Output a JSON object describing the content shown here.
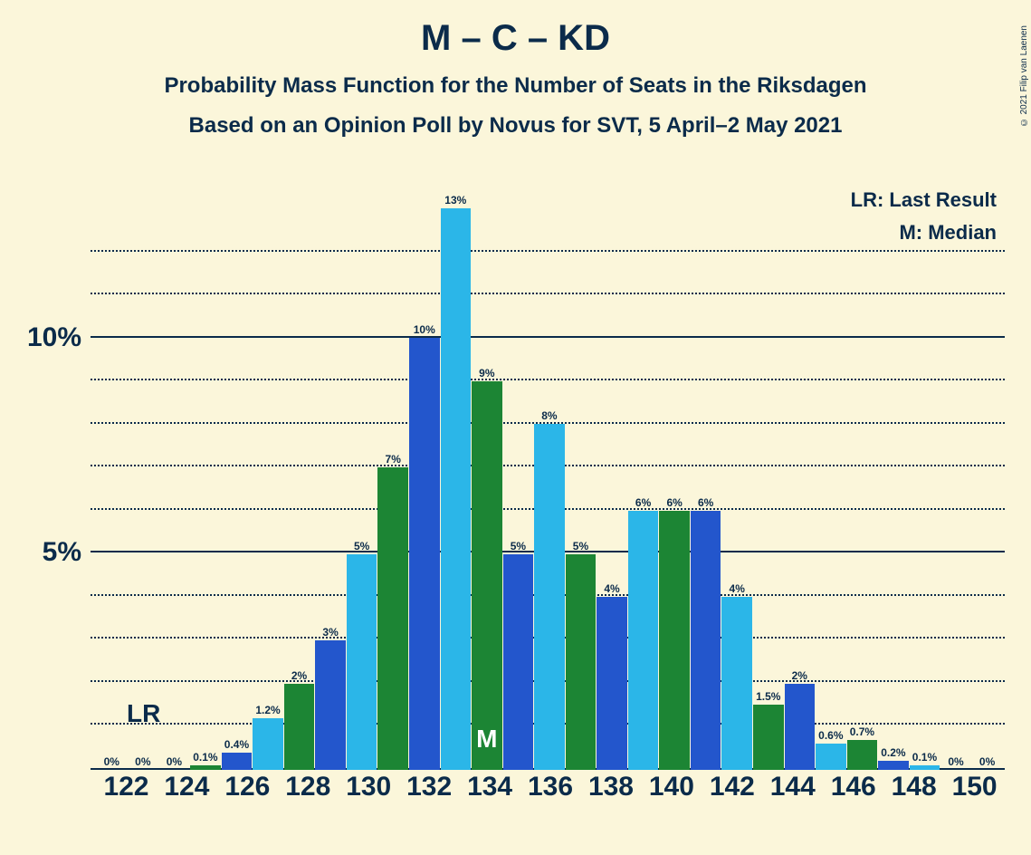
{
  "title": "M – C – KD",
  "title_fontsize": 40,
  "subtitle1": "Probability Mass Function for the Number of Seats in the Riksdagen",
  "subtitle2": "Based on an Opinion Poll by Novus for SVT, 5 April–2 May 2021",
  "subtitle_fontsize": 24,
  "copyright": "© 2021 Filip van Laenen",
  "legend_lr": "LR: Last Result",
  "legend_m": "M: Median",
  "legend_fontsize": 22,
  "lr_marker_text": "LR",
  "lr_marker_fontsize": 28,
  "median_marker_text": "M",
  "median_marker_fontsize": 28,
  "median_bar_index": 12,
  "background_color": "#fbf6da",
  "text_color": "#0b2b4a",
  "chart": {
    "ymax": 13,
    "y_gridlines_solid": [
      5,
      10
    ],
    "y_gridlines_dotted": [
      1,
      2,
      3,
      4,
      6,
      7,
      8,
      9,
      11,
      12
    ],
    "y_labels": [
      {
        "v": 5,
        "t": "5%"
      },
      {
        "v": 10,
        "t": "10%"
      }
    ],
    "ylabel_fontsize": 30,
    "xlabel_fontsize": 30,
    "xticks": [
      "122",
      "124",
      "126",
      "128",
      "130",
      "132",
      "134",
      "136",
      "138",
      "140",
      "142",
      "144",
      "146",
      "148",
      "150"
    ],
    "bar_colors": [
      "#1c8534",
      "#2356cc",
      "#2bb6e8"
    ],
    "bars": [
      {
        "v": 0,
        "l": "0%",
        "c": 0
      },
      {
        "v": 0,
        "l": "0%",
        "c": 1
      },
      {
        "v": 0,
        "l": "0%",
        "c": 2
      },
      {
        "v": 0.1,
        "l": "0.1%",
        "c": 0
      },
      {
        "v": 0.4,
        "l": "0.4%",
        "c": 1
      },
      {
        "v": 1.2,
        "l": "1.2%",
        "c": 2
      },
      {
        "v": 2,
        "l": "2%",
        "c": 0
      },
      {
        "v": 3,
        "l": "3%",
        "c": 1
      },
      {
        "v": 5,
        "l": "5%",
        "c": 2
      },
      {
        "v": 7,
        "l": "7%",
        "c": 0
      },
      {
        "v": 10,
        "l": "10%",
        "c": 1
      },
      {
        "v": 13,
        "l": "13%",
        "c": 2
      },
      {
        "v": 9,
        "l": "9%",
        "c": 0
      },
      {
        "v": 5,
        "l": "5%",
        "c": 1
      },
      {
        "v": 8,
        "l": "8%",
        "c": 2
      },
      {
        "v": 5,
        "l": "5%",
        "c": 0
      },
      {
        "v": 4,
        "l": "4%",
        "c": 1
      },
      {
        "v": 6,
        "l": "6%",
        "c": 2
      },
      {
        "v": 6,
        "l": "6%",
        "c": 0
      },
      {
        "v": 6,
        "l": "6%",
        "c": 1
      },
      {
        "v": 4,
        "l": "4%",
        "c": 2
      },
      {
        "v": 1.5,
        "l": "1.5%",
        "c": 0
      },
      {
        "v": 2,
        "l": "2%",
        "c": 1
      },
      {
        "v": 0.6,
        "l": "0.6%",
        "c": 2
      },
      {
        "v": 0.7,
        "l": "0.7%",
        "c": 0
      },
      {
        "v": 0.2,
        "l": "0.2%",
        "c": 1
      },
      {
        "v": 0.1,
        "l": "0.1%",
        "c": 2
      },
      {
        "v": 0,
        "l": "0%",
        "c": 0
      },
      {
        "v": 0,
        "l": "0%",
        "c": 1
      }
    ]
  }
}
